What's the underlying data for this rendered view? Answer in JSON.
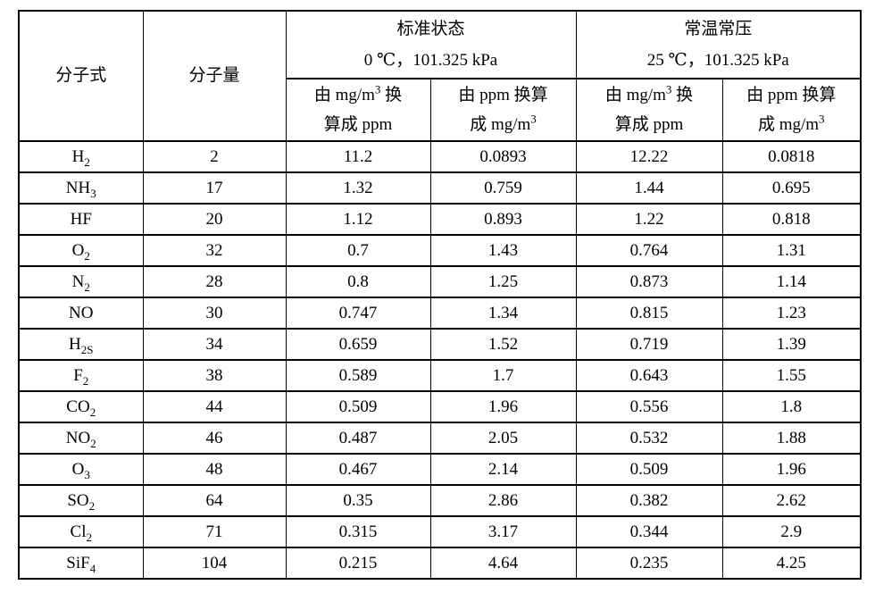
{
  "page": {
    "background_color": "#ffffff",
    "border_color": "#000000",
    "text_color": "#000000"
  },
  "table": {
    "header": {
      "formula_label": "分子式",
      "weight_label": "分子量",
      "groups": [
        {
          "title": "标准状态",
          "condition": "0 ℃，101.325 kPa",
          "sub_headers": [
            [
              "由 mg/m^3 换",
              "算成 ppm"
            ],
            [
              "由 ppm 换算",
              "成 mg/m^3"
            ]
          ]
        },
        {
          "title": "常温常压",
          "condition": "25 ℃，101.325 kPa",
          "sub_headers": [
            [
              "由 mg/m^3 换",
              "算成 ppm"
            ],
            [
              "由 ppm 换算",
              "成 mg/m^3"
            ]
          ]
        }
      ]
    },
    "rows": [
      {
        "formula": "H_2",
        "weight": "2",
        "std_mg_to_ppm": "11.2",
        "std_ppm_to_mg": "0.0893",
        "ntp_mg_to_ppm": "12.22",
        "ntp_ppm_to_mg": "0.0818"
      },
      {
        "formula": "NH_3",
        "weight": "17",
        "std_mg_to_ppm": "1.32",
        "std_ppm_to_mg": "0.759",
        "ntp_mg_to_ppm": "1.44",
        "ntp_ppm_to_mg": "0.695"
      },
      {
        "formula": "HF",
        "weight": "20",
        "std_mg_to_ppm": "1.12",
        "std_ppm_to_mg": "0.893",
        "ntp_mg_to_ppm": "1.22",
        "ntp_ppm_to_mg": "0.818"
      },
      {
        "formula": "O_2",
        "weight": "32",
        "std_mg_to_ppm": "0.7",
        "std_ppm_to_mg": "1.43",
        "ntp_mg_to_ppm": "0.764",
        "ntp_ppm_to_mg": "1.31"
      },
      {
        "formula": "N_2",
        "weight": "28",
        "std_mg_to_ppm": "0.8",
        "std_ppm_to_mg": "1.25",
        "ntp_mg_to_ppm": "0.873",
        "ntp_ppm_to_mg": "1.14"
      },
      {
        "formula": "NO",
        "weight": "30",
        "std_mg_to_ppm": "0.747",
        "std_ppm_to_mg": "1.34",
        "ntp_mg_to_ppm": "0.815",
        "ntp_ppm_to_mg": "1.23"
      },
      {
        "formula": "H_2S",
        "weight": "34",
        "std_mg_to_ppm": "0.659",
        "std_ppm_to_mg": "1.52",
        "ntp_mg_to_ppm": "0.719",
        "ntp_ppm_to_mg": "1.39"
      },
      {
        "formula": "F_2",
        "weight": "38",
        "std_mg_to_ppm": "0.589",
        "std_ppm_to_mg": "1.7",
        "ntp_mg_to_ppm": "0.643",
        "ntp_ppm_to_mg": "1.55"
      },
      {
        "formula": "CO_2",
        "weight": "44",
        "std_mg_to_ppm": "0.509",
        "std_ppm_to_mg": "1.96",
        "ntp_mg_to_ppm": "0.556",
        "ntp_ppm_to_mg": "1.8"
      },
      {
        "formula": "NO_2",
        "weight": "46",
        "std_mg_to_ppm": "0.487",
        "std_ppm_to_mg": "2.05",
        "ntp_mg_to_ppm": "0.532",
        "ntp_ppm_to_mg": "1.88"
      },
      {
        "formula": "O_3",
        "weight": "48",
        "std_mg_to_ppm": "0.467",
        "std_ppm_to_mg": "2.14",
        "ntp_mg_to_ppm": "0.509",
        "ntp_ppm_to_mg": "1.96"
      },
      {
        "formula": "SO_2",
        "weight": "64",
        "std_mg_to_ppm": "0.35",
        "std_ppm_to_mg": "2.86",
        "ntp_mg_to_ppm": "0.382",
        "ntp_ppm_to_mg": "2.62"
      },
      {
        "formula": "Cl_2",
        "weight": "71",
        "std_mg_to_ppm": "0.315",
        "std_ppm_to_mg": "3.17",
        "ntp_mg_to_ppm": "0.344",
        "ntp_ppm_to_mg": "2.9"
      },
      {
        "formula": "SiF_4",
        "weight": "104",
        "std_mg_to_ppm": "0.215",
        "std_ppm_to_mg": "4.64",
        "ntp_mg_to_ppm": "0.235",
        "ntp_ppm_to_mg": "4.25"
      }
    ]
  }
}
